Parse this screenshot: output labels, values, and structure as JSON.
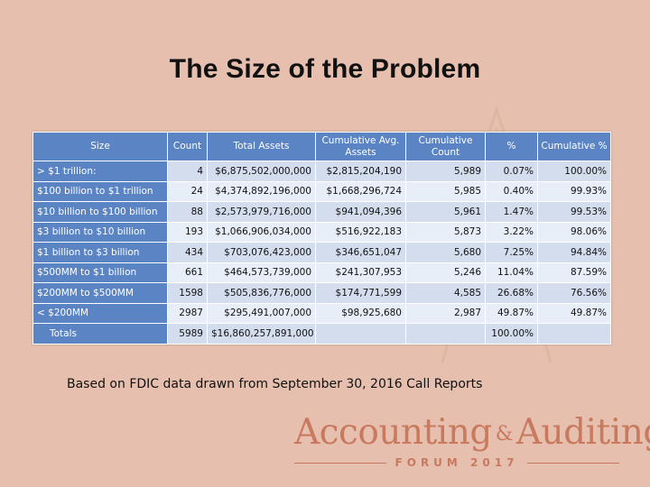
{
  "slide": {
    "title": "The Size of the Problem",
    "footnote": "Based on FDIC data drawn from September 30, 2016 Call Reports"
  },
  "table": {
    "headers": {
      "size": "Size",
      "count": "Count",
      "total_assets": "Total Assets",
      "cum_avg_assets": "Cumulative Avg. Assets",
      "cum_count": "Cumulative Count",
      "pct": "%",
      "cum_pct": "Cumulative %"
    },
    "rows": [
      {
        "size": "> $1 trillion:",
        "count": "4",
        "total_assets": "$6,875,502,000,000",
        "cum_avg_assets": "$2,815,204,190",
        "cum_count": "5,989",
        "pct": "0.07%",
        "cum_pct": "100.00%"
      },
      {
        "size": "$100 billion to $1 trillion",
        "count": "24",
        "total_assets": "$4,374,892,196,000",
        "cum_avg_assets": "$1,668,296,724",
        "cum_count": "5,985",
        "pct": "0.40%",
        "cum_pct": "99.93%"
      },
      {
        "size": "$10 billion to $100 billion",
        "count": "88",
        "total_assets": "$2,573,979,716,000",
        "cum_avg_assets": "$941,094,396",
        "cum_count": "5,961",
        "pct": "1.47%",
        "cum_pct": "99.53%"
      },
      {
        "size": "$3 billion to $10 billion",
        "count": "193",
        "total_assets": "$1,066,906,034,000",
        "cum_avg_assets": "$516,922,183",
        "cum_count": "5,873",
        "pct": "3.22%",
        "cum_pct": "98.06%"
      },
      {
        "size": "$1 billion to $3 billion",
        "count": "434",
        "total_assets": "$703,076,423,000",
        "cum_avg_assets": "$346,651,047",
        "cum_count": "5,680",
        "pct": "7.25%",
        "cum_pct": "94.84%"
      },
      {
        "size": "$500MM to $1 billion",
        "count": "661",
        "total_assets": "$464,573,739,000",
        "cum_avg_assets": "$241,307,953",
        "cum_count": "5,246",
        "pct": "11.04%",
        "cum_pct": "87.59%"
      },
      {
        "size": "$200MM to $500MM",
        "count": "1598",
        "total_assets": "$505,836,776,000",
        "cum_avg_assets": "$174,771,599",
        "cum_count": "4,585",
        "pct": "26.68%",
        "cum_pct": "76.56%"
      },
      {
        "size": "< $200MM",
        "count": "2987",
        "total_assets": "$295,491,007,000",
        "cum_avg_assets": "$98,925,680",
        "cum_count": "2,987",
        "pct": "49.87%",
        "cum_pct": "49.87%"
      }
    ],
    "totals": {
      "label": "Totals",
      "count": "5989",
      "total_assets": "$16,860,257,891,000",
      "pct": "100.00%"
    }
  },
  "brand": {
    "word1": "Accounting",
    "amp": "&",
    "word2": "Auditing",
    "sub": "FORUM 2017",
    "color": "#c97a5e"
  },
  "colors": {
    "background": "#e6bfae",
    "header_blue": "#5b84c4",
    "row_light": "#e8eef7",
    "row_dark": "#d3ddee"
  }
}
